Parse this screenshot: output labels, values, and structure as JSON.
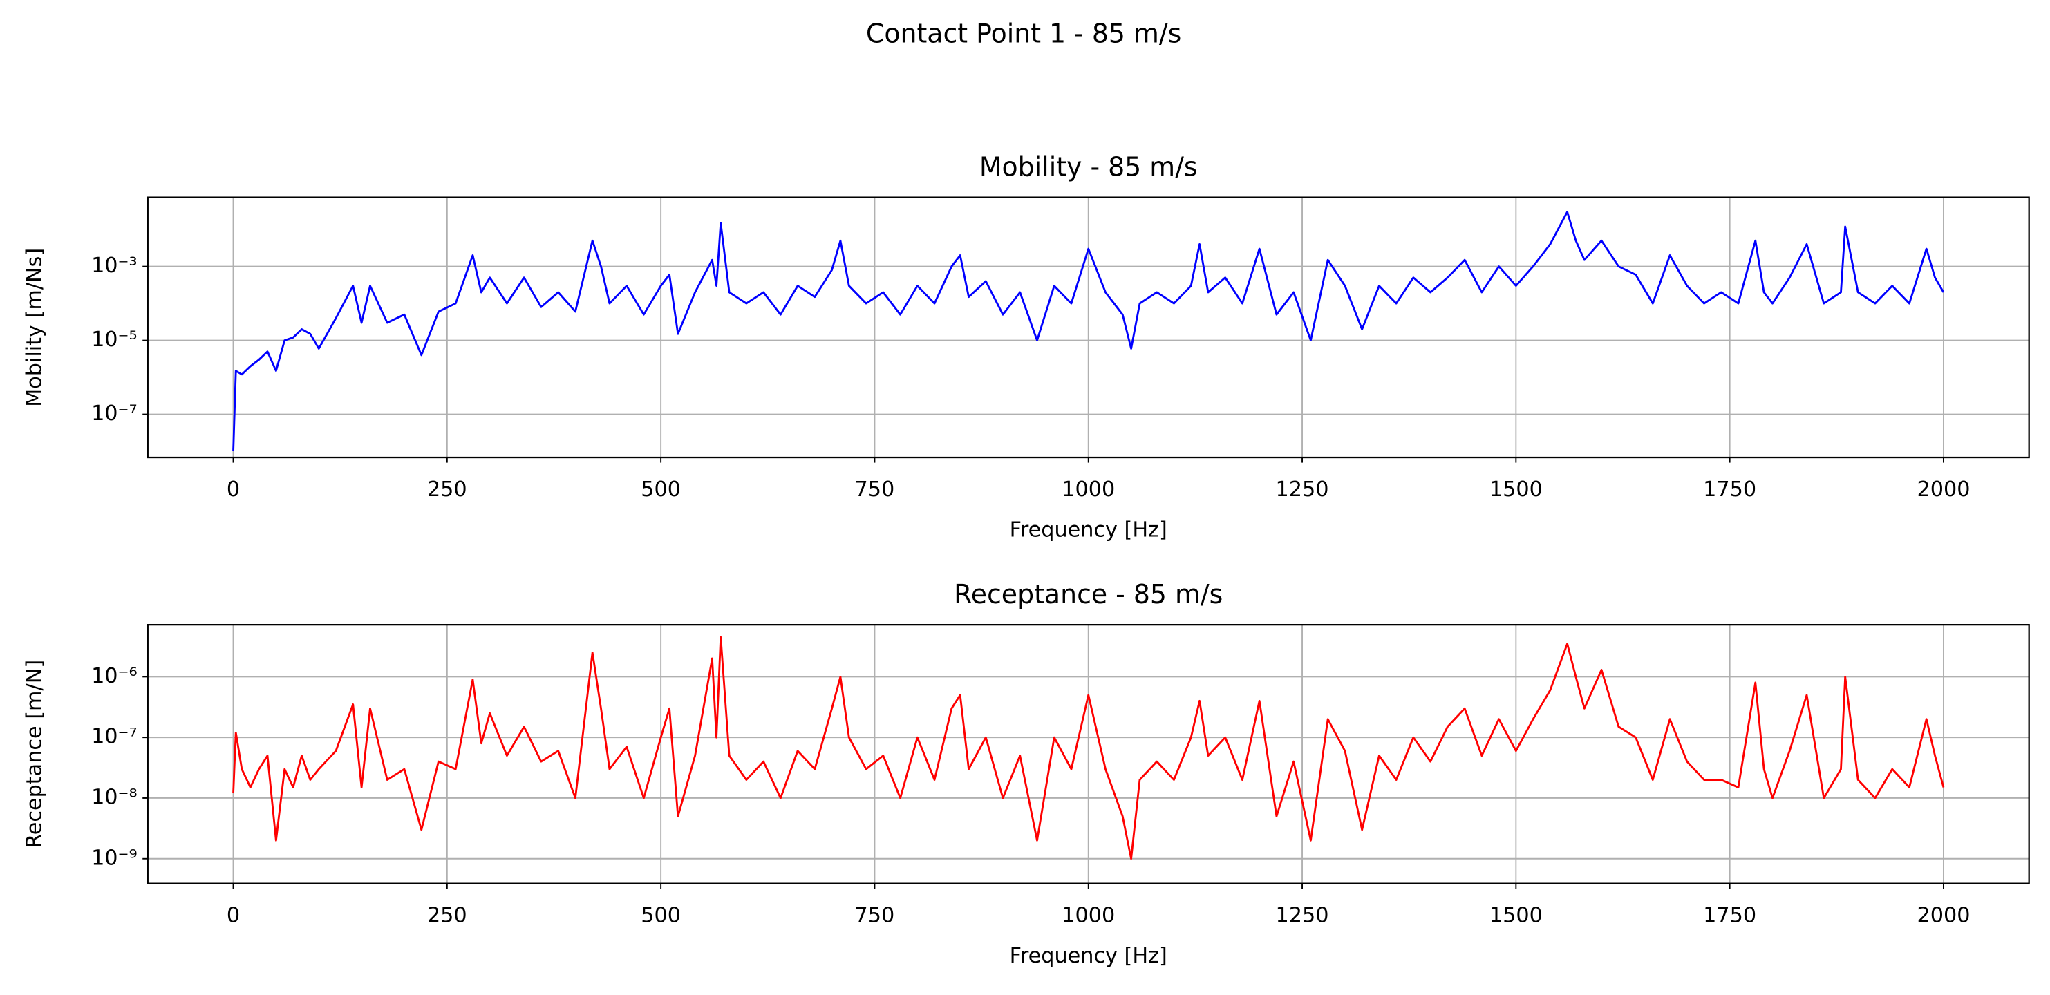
{
  "title": "Contact Point 1 - 85 m/s",
  "chart_data": [
    {
      "type": "line",
      "title": "Mobility - 85 m/s",
      "x_label": "Frequency [Hz]",
      "y_label": "Mobility [m/Ns]",
      "log_y": true,
      "grid": true,
      "color": "#0000ff",
      "xlim": [
        -100,
        2100
      ],
      "xticks": [
        0,
        250,
        500,
        750,
        1000,
        1250,
        1500,
        1750,
        2000
      ],
      "ylim": [
        6.8e-09,
        0.074
      ],
      "yticks": [
        {
          "value": 1e-07,
          "label": "10⁻⁷"
        },
        {
          "value": 1e-05,
          "label": "10⁻⁵"
        },
        {
          "value": 0.001,
          "label": "10⁻³"
        }
      ],
      "x": [
        0,
        3,
        10,
        20,
        30,
        40,
        50,
        60,
        70,
        80,
        90,
        100,
        120,
        140,
        150,
        160,
        180,
        200,
        220,
        240,
        260,
        280,
        290,
        300,
        320,
        340,
        360,
        380,
        400,
        420,
        430,
        440,
        460,
        480,
        500,
        510,
        520,
        540,
        560,
        565,
        570,
        580,
        600,
        620,
        640,
        660,
        680,
        700,
        710,
        720,
        740,
        760,
        780,
        800,
        820,
        840,
        850,
        860,
        880,
        900,
        920,
        940,
        960,
        980,
        1000,
        1020,
        1040,
        1050,
        1060,
        1080,
        1100,
        1120,
        1130,
        1140,
        1160,
        1180,
        1200,
        1220,
        1240,
        1260,
        1280,
        1300,
        1320,
        1340,
        1360,
        1380,
        1400,
        1420,
        1440,
        1460,
        1480,
        1500,
        1520,
        1540,
        1560,
        1570,
        1580,
        1600,
        1620,
        1640,
        1660,
        1680,
        1700,
        1720,
        1740,
        1760,
        1780,
        1790,
        1800,
        1820,
        1840,
        1860,
        1880,
        1885,
        1900,
        1920,
        1940,
        1960,
        1980,
        1990,
        2000
      ],
      "values": [
        1e-08,
        1.5e-06,
        1.2e-06,
        2e-06,
        3e-06,
        5e-06,
        1.5e-06,
        1e-05,
        1.2e-05,
        2e-05,
        1.5e-05,
        6e-06,
        4e-05,
        0.0003,
        3e-05,
        0.0003,
        3e-05,
        5e-05,
        4e-06,
        6e-05,
        0.0001,
        0.002,
        0.0002,
        0.0005,
        0.0001,
        0.0005,
        8e-05,
        0.0002,
        6e-05,
        0.005,
        0.001,
        0.0001,
        0.0003,
        5e-05,
        0.0003,
        0.0006,
        1.5e-05,
        0.0002,
        0.0015,
        0.0003,
        0.015,
        0.0002,
        0.0001,
        0.0002,
        5e-05,
        0.0003,
        0.00015,
        0.0008,
        0.005,
        0.0003,
        0.0001,
        0.0002,
        5e-05,
        0.0003,
        0.0001,
        0.001,
        0.002,
        0.00015,
        0.0004,
        5e-05,
        0.0002,
        1e-05,
        0.0003,
        0.0001,
        0.003,
        0.0002,
        5e-05,
        6e-06,
        0.0001,
        0.0002,
        0.0001,
        0.0003,
        0.004,
        0.0002,
        0.0005,
        0.0001,
        0.003,
        5e-05,
        0.0002,
        1e-05,
        0.0015,
        0.0003,
        2e-05,
        0.0003,
        0.0001,
        0.0005,
        0.0002,
        0.0005,
        0.0015,
        0.0002,
        0.001,
        0.0003,
        0.001,
        0.004,
        0.03,
        0.005,
        0.0015,
        0.005,
        0.001,
        0.0006,
        0.0001,
        0.002,
        0.0003,
        0.0001,
        0.0002,
        0.0001,
        0.005,
        0.0002,
        0.0001,
        0.0005,
        0.004,
        0.0001,
        0.0002,
        0.012,
        0.0002,
        0.0001,
        0.0003,
        0.0001,
        0.003,
        0.0005,
        0.0002
      ]
    },
    {
      "type": "line",
      "title": "Receptance - 85 m/s",
      "x_label": "Frequency [Hz]",
      "y_label": "Receptance [m/N]",
      "log_y": true,
      "grid": true,
      "color": "#ff0000",
      "xlim": [
        -100,
        2100
      ],
      "xticks": [
        0,
        250,
        500,
        750,
        1000,
        1250,
        1500,
        1750,
        2000
      ],
      "ylim": [
        3.9e-10,
        7.2e-06
      ],
      "yticks": [
        {
          "value": 1e-09,
          "label": "10⁻⁹"
        },
        {
          "value": 1e-08,
          "label": "10⁻⁸"
        },
        {
          "value": 1e-07,
          "label": "10⁻⁷"
        },
        {
          "value": 1e-06,
          "label": "10⁻⁶"
        }
      ],
      "x": [
        0,
        3,
        10,
        20,
        30,
        40,
        50,
        60,
        70,
        80,
        90,
        100,
        120,
        140,
        150,
        160,
        180,
        200,
        220,
        240,
        260,
        280,
        290,
        300,
        320,
        340,
        360,
        380,
        400,
        420,
        430,
        440,
        460,
        480,
        500,
        510,
        520,
        540,
        560,
        565,
        570,
        580,
        600,
        620,
        640,
        660,
        680,
        700,
        710,
        720,
        740,
        760,
        780,
        800,
        820,
        840,
        850,
        860,
        880,
        900,
        920,
        940,
        960,
        980,
        1000,
        1020,
        1040,
        1050,
        1060,
        1080,
        1100,
        1120,
        1130,
        1140,
        1160,
        1180,
        1200,
        1220,
        1240,
        1260,
        1280,
        1300,
        1320,
        1340,
        1360,
        1380,
        1400,
        1420,
        1440,
        1460,
        1480,
        1500,
        1520,
        1540,
        1560,
        1570,
        1580,
        1600,
        1620,
        1640,
        1660,
        1680,
        1700,
        1720,
        1740,
        1760,
        1780,
        1790,
        1800,
        1820,
        1840,
        1860,
        1880,
        1885,
        1900,
        1920,
        1940,
        1960,
        1980,
        1990,
        2000
      ],
      "values": [
        1.2e-08,
        1.2e-07,
        3e-08,
        1.5e-08,
        3e-08,
        5e-08,
        2e-09,
        3e-08,
        1.5e-08,
        5e-08,
        2e-08,
        3e-08,
        6e-08,
        3.5e-07,
        1.5e-08,
        3e-07,
        2e-08,
        3e-08,
        3e-09,
        4e-08,
        3e-08,
        9e-07,
        8e-08,
        2.5e-07,
        5e-08,
        1.5e-07,
        4e-08,
        6e-08,
        1e-08,
        2.5e-06,
        3e-07,
        3e-08,
        7e-08,
        1e-08,
        1e-07,
        3e-07,
        5e-09,
        5e-08,
        2e-06,
        1e-07,
        4.5e-06,
        5e-08,
        2e-08,
        4e-08,
        1e-08,
        6e-08,
        3e-08,
        3e-07,
        1e-06,
        1e-07,
        3e-08,
        5e-08,
        1e-08,
        1e-07,
        2e-08,
        3e-07,
        5e-07,
        3e-08,
        1e-07,
        1e-08,
        5e-08,
        2e-09,
        1e-07,
        3e-08,
        5e-07,
        3e-08,
        5e-09,
        1e-09,
        2e-08,
        4e-08,
        2e-08,
        1e-07,
        4e-07,
        5e-08,
        1e-07,
        2e-08,
        4e-07,
        5e-09,
        4e-08,
        2e-09,
        2e-07,
        6e-08,
        3e-09,
        5e-08,
        2e-08,
        1e-07,
        4e-08,
        1.5e-07,
        3e-07,
        5e-08,
        2e-07,
        6e-08,
        2e-07,
        6e-07,
        3.5e-06,
        1e-06,
        3e-07,
        1.3e-06,
        1.5e-07,
        1e-07,
        2e-08,
        2e-07,
        4e-08,
        2e-08,
        2e-08,
        1.5e-08,
        8e-07,
        3e-08,
        1e-08,
        6e-08,
        5e-07,
        1e-08,
        3e-08,
        1e-06,
        2e-08,
        1e-08,
        3e-08,
        1.5e-08,
        2e-07,
        5e-08,
        1.5e-08
      ]
    }
  ]
}
